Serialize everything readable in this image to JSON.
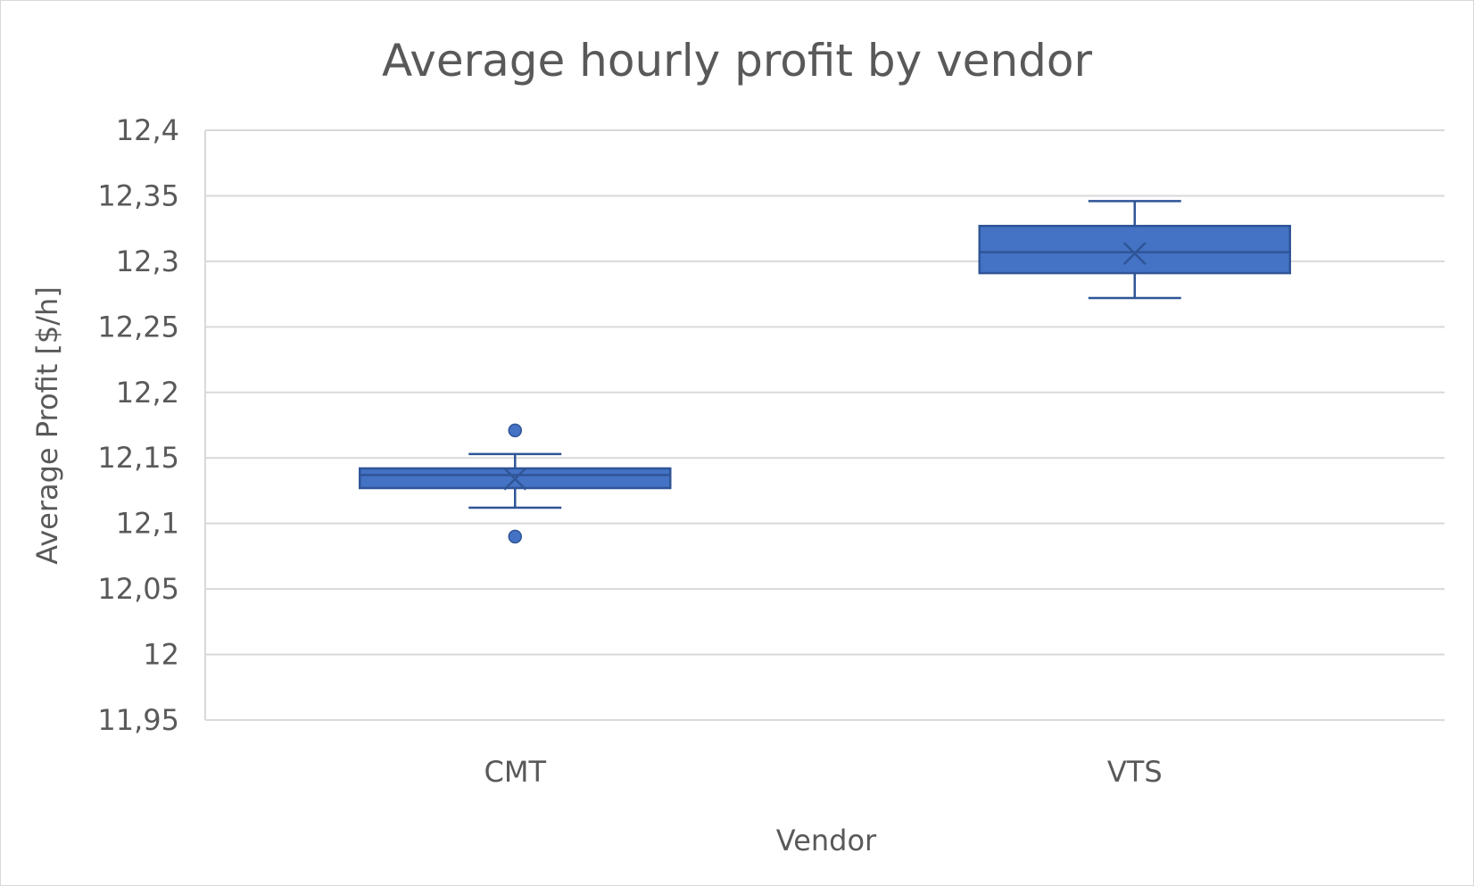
{
  "chart_data": {
    "type": "box",
    "title": "Average hourly profit by vendor",
    "xlabel": "Vendor",
    "ylabel": "Average Profit [$/h]",
    "ylim": [
      11.95,
      12.4
    ],
    "y_ticks": [
      "11,95",
      "12",
      "12,05",
      "12,1",
      "12,15",
      "12,2",
      "12,25",
      "12,3",
      "12,35",
      "12,4"
    ],
    "y_tick_values": [
      11.95,
      12.0,
      12.05,
      12.1,
      12.15,
      12.2,
      12.25,
      12.3,
      12.35,
      12.4
    ],
    "categories": [
      "CMT",
      "VTS"
    ],
    "boxes": [
      {
        "category": "CMT",
        "whisker_low": 12.112,
        "q1": 12.127,
        "median": 12.137,
        "q3": 12.142,
        "whisker_high": 12.153,
        "mean": 12.134,
        "outliers": [
          12.171,
          12.09
        ]
      },
      {
        "category": "VTS",
        "whisker_low": 12.272,
        "q1": 12.291,
        "median": 12.307,
        "q3": 12.327,
        "whisker_high": 12.346,
        "mean": 12.306,
        "outliers": []
      }
    ],
    "grid": true,
    "legend": "none",
    "colors": {
      "fill": "#4472c4",
      "stroke": "#2f5597",
      "grid": "#d9d9d9",
      "text": "#595959"
    }
  }
}
